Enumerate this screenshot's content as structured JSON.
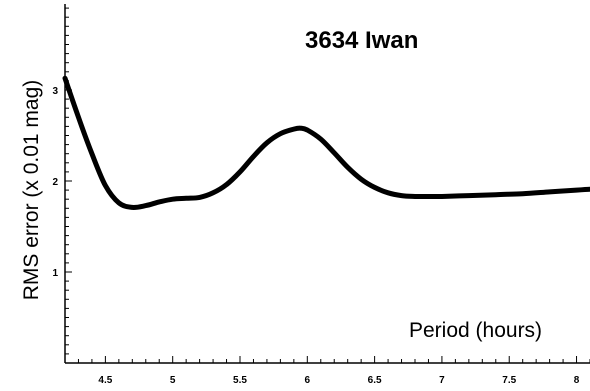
{
  "chart_data": {
    "type": "line",
    "title": "3634 Iwan",
    "xlabel": "Period (hours)",
    "ylabel": "RMS error (x 0.01 mag)",
    "xlim": [
      4.2,
      8.1
    ],
    "ylim": [
      0,
      4.0
    ],
    "xticks_labeled": [
      "4.5",
      "5",
      "5.5",
      "6",
      "6.5",
      "7",
      "7.5",
      "8"
    ],
    "xticks_labeled_values": [
      4.5,
      5,
      5.5,
      6,
      6.5,
      7,
      7.5,
      8
    ],
    "xtick_minor_step": 0.1,
    "yticks_labeled": [
      "1",
      "2",
      "3"
    ],
    "yticks_labeled_values": [
      1,
      2,
      3
    ],
    "ytick_minor_step": 0.1,
    "grid": false,
    "legend": "none",
    "line_color": "#000000",
    "series": [
      {
        "x": [
          4.2,
          4.3,
          4.4,
          4.5,
          4.6,
          4.7,
          4.8,
          4.9,
          5.0,
          5.1,
          5.2,
          5.3,
          5.4,
          5.5,
          5.6,
          5.7,
          5.8,
          5.9,
          5.95,
          6.0,
          6.1,
          6.2,
          6.3,
          6.4,
          6.5,
          6.6,
          6.7,
          6.8,
          6.9,
          7.0,
          7.2,
          7.4,
          7.6,
          7.8,
          8.0,
          8.1
        ],
        "y": [
          3.13,
          2.7,
          2.3,
          1.95,
          1.76,
          1.71,
          1.73,
          1.77,
          1.8,
          1.81,
          1.82,
          1.87,
          1.96,
          2.1,
          2.27,
          2.42,
          2.52,
          2.57,
          2.58,
          2.56,
          2.46,
          2.31,
          2.15,
          2.02,
          1.93,
          1.87,
          1.84,
          1.83,
          1.83,
          1.83,
          1.84,
          1.85,
          1.86,
          1.88,
          1.9,
          1.91
        ]
      }
    ]
  }
}
